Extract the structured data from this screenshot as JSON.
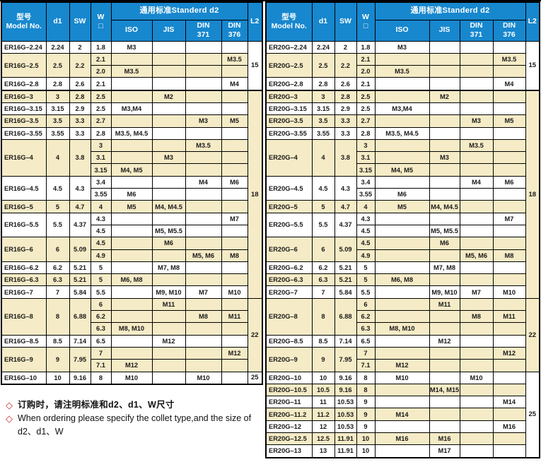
{
  "colors": {
    "header_blue": "#1787ce",
    "row_tan": "#f5ebc6",
    "diamond_red": "#c53030",
    "border_black": "#000000"
  },
  "header": {
    "model_cn": "型号",
    "model_en": "Model No.",
    "d1": "d1",
    "sw": "SW",
    "w": "W",
    "w_box": "□",
    "standard_d2": "通用标准Standerd  d2",
    "iso": "ISO",
    "jis": "JIS",
    "din": "DIN",
    "din371": "371",
    "din376": "376",
    "l2": "L2"
  },
  "tables": [
    {
      "name": "ER16G",
      "l2_spans": [
        {
          "value": "15",
          "rows": 4
        },
        {
          "value": "18",
          "rows": 17
        },
        {
          "value": "22",
          "rows": 6
        },
        {
          "value": "25",
          "rows": 1
        }
      ],
      "groups": [
        {
          "model": "ER16G–2.24",
          "d1": "2.24",
          "sw": "2",
          "rows": [
            [
              "1.8",
              "M3",
              "",
              "",
              ""
            ]
          ]
        },
        {
          "model": "ER16G–2.5",
          "d1": "2.5",
          "sw": "2.2",
          "rows": [
            [
              "2.1",
              "",
              "",
              "",
              "M3.5"
            ],
            [
              "2.0",
              "M3.5",
              "",
              "",
              ""
            ]
          ]
        },
        {
          "model": "ER16G–2.8",
          "d1": "2.8",
          "sw": "2.6",
          "rows": [
            [
              "2.1",
              "",
              "",
              "",
              "M4"
            ]
          ]
        },
        {
          "model": "ER16G–3",
          "d1": "3",
          "sw": "2.8",
          "rows": [
            [
              "2.5",
              "",
              "M2",
              "",
              ""
            ]
          ]
        },
        {
          "model": "ER16G–3.15",
          "d1": "3.15",
          "sw": "2.9",
          "rows": [
            [
              "2.5",
              "M3,M4",
              "",
              "",
              ""
            ]
          ]
        },
        {
          "model": "ER16G–3.5",
          "d1": "3.5",
          "sw": "3.3",
          "rows": [
            [
              "2.7",
              "",
              "",
              "M3",
              "M5"
            ]
          ]
        },
        {
          "model": "ER16G–3.55",
          "d1": "3.55",
          "sw": "3.3",
          "rows": [
            [
              "2.8",
              "M3.5, M4.5",
              "",
              "",
              ""
            ]
          ]
        },
        {
          "model": "ER16G–4",
          "d1": "4",
          "sw": "3.8",
          "rows": [
            [
              "3",
              "",
              "",
              "M3.5",
              ""
            ],
            [
              "3.1",
              "",
              "M3",
              "",
              ""
            ],
            [
              "3.15",
              "M4, M5",
              "",
              "",
              ""
            ]
          ]
        },
        {
          "model": "ER16G–4.5",
          "d1": "4.5",
          "sw": "4.3",
          "rows": [
            [
              "3.4",
              "",
              "",
              "M4",
              "M6"
            ],
            [
              "3.55",
              "M6",
              "",
              "",
              ""
            ]
          ]
        },
        {
          "model": "ER16G–5",
          "d1": "5",
          "sw": "4.7",
          "rows": [
            [
              "4",
              "M5",
              "M4, M4.5",
              "",
              ""
            ]
          ]
        },
        {
          "model": "ER16G–5.5",
          "d1": "5.5",
          "sw": "4.37",
          "rows": [
            [
              "4.3",
              "",
              "",
              "",
              "M7"
            ],
            [
              "4.5",
              "",
              "M5, M5.5",
              "",
              ""
            ]
          ]
        },
        {
          "model": "ER16G–6",
          "d1": "6",
          "sw": "5.09",
          "rows": [
            [
              "4.5",
              "",
              "M6",
              "",
              ""
            ],
            [
              "4.9",
              "",
              "",
              "M5, M6",
              "M8"
            ]
          ]
        },
        {
          "model": "ER16G–6.2",
          "d1": "6.2",
          "sw": "5.21",
          "rows": [
            [
              "5",
              "",
              "M7, M8",
              "",
              ""
            ]
          ]
        },
        {
          "model": "ER16G–6.3",
          "d1": "6.3",
          "sw": "5.21",
          "rows": [
            [
              "5",
              "M6, M8",
              "",
              "",
              ""
            ]
          ]
        },
        {
          "model": "ER16G–7",
          "d1": "7",
          "sw": "5.84",
          "rows": [
            [
              "5.5",
              "",
              "M9, M10",
              "M7",
              "M10"
            ]
          ]
        },
        {
          "model": "ER16G–8",
          "d1": "8",
          "sw": "6.88",
          "rows": [
            [
              "6",
              "",
              "M11",
              "",
              ""
            ],
            [
              "6.2",
              "",
              "",
              "M8",
              "M11"
            ],
            [
              "6.3",
              "M8, M10",
              "",
              "",
              ""
            ]
          ]
        },
        {
          "model": "ER16G–8.5",
          "d1": "8.5",
          "sw": "7.14",
          "rows": [
            [
              "6.5",
              "",
              "M12",
              "",
              ""
            ]
          ]
        },
        {
          "model": "ER16G–9",
          "d1": "9",
          "sw": "7.95",
          "rows": [
            [
              "7",
              "",
              "",
              "",
              "M12"
            ],
            [
              "7.1",
              "M12",
              "",
              "",
              ""
            ]
          ]
        },
        {
          "model": "ER16G–10",
          "d1": "10",
          "sw": "9.16",
          "rows": [
            [
              "8",
              "M10",
              "",
              "M10",
              ""
            ]
          ]
        }
      ]
    },
    {
      "name": "ER20G",
      "l2_spans": [
        {
          "value": "15",
          "rows": 4
        },
        {
          "value": "18",
          "rows": 17
        },
        {
          "value": "22",
          "rows": 6
        },
        {
          "value": "25",
          "rows": 7
        }
      ],
      "groups": [
        {
          "model": "ER20G–2.24",
          "d1": "2.24",
          "sw": "2",
          "rows": [
            [
              "1.8",
              "M3",
              "",
              "",
              ""
            ]
          ]
        },
        {
          "model": "ER20G–2.5",
          "d1": "2.5",
          "sw": "2.2",
          "rows": [
            [
              "2.1",
              "",
              "",
              "",
              "M3.5"
            ],
            [
              "2.0",
              "M3.5",
              "",
              "",
              ""
            ]
          ]
        },
        {
          "model": "ER20G–2.8",
          "d1": "2.8",
          "sw": "2.6",
          "rows": [
            [
              "2.1",
              "",
              "",
              "",
              "M4"
            ]
          ]
        },
        {
          "model": "ER20G–3",
          "d1": "3",
          "sw": "2.8",
          "rows": [
            [
              "2.5",
              "",
              "M2",
              "",
              ""
            ]
          ]
        },
        {
          "model": "ER20G–3.15",
          "d1": "3.15",
          "sw": "2.9",
          "rows": [
            [
              "2.5",
              "M3,M4",
              "",
              "",
              ""
            ]
          ]
        },
        {
          "model": "ER20G–3.5",
          "d1": "3.5",
          "sw": "3.3",
          "rows": [
            [
              "2.7",
              "",
              "",
              "M3",
              "M5"
            ]
          ]
        },
        {
          "model": "ER20G–3.55",
          "d1": "3.55",
          "sw": "3.3",
          "rows": [
            [
              "2.8",
              "M3.5, M4.5",
              "",
              "",
              ""
            ]
          ]
        },
        {
          "model": "ER20G–4",
          "d1": "4",
          "sw": "3.8",
          "rows": [
            [
              "3",
              "",
              "",
              "M3.5",
              ""
            ],
            [
              "3.1",
              "",
              "M3",
              "",
              ""
            ],
            [
              "3.15",
              "M4, M5",
              "",
              "",
              ""
            ]
          ]
        },
        {
          "model": "ER20G–4.5",
          "d1": "4.5",
          "sw": "4.3",
          "rows": [
            [
              "3.4",
              "",
              "",
              "M4",
              "M6"
            ],
            [
              "3.55",
              "M6",
              "",
              "",
              ""
            ]
          ]
        },
        {
          "model": "ER20G–5",
          "d1": "5",
          "sw": "4.7",
          "rows": [
            [
              "4",
              "M5",
              "M4, M4.5",
              "",
              ""
            ]
          ]
        },
        {
          "model": "ER20G–5.5",
          "d1": "5.5",
          "sw": "4.37",
          "rows": [
            [
              "4.3",
              "",
              "",
              "",
              "M7"
            ],
            [
              "4.5",
              "",
              "M5, M5.5",
              "",
              ""
            ]
          ]
        },
        {
          "model": "ER20G–6",
          "d1": "6",
          "sw": "5.09",
          "rows": [
            [
              "4.5",
              "",
              "M6",
              "",
              ""
            ],
            [
              "4.9",
              "",
              "",
              "M5, M6",
              "M8"
            ]
          ]
        },
        {
          "model": "ER20G–6.2",
          "d1": "6.2",
          "sw": "5.21",
          "rows": [
            [
              "5",
              "",
              "M7, M8",
              "",
              ""
            ]
          ]
        },
        {
          "model": "ER20G–6.3",
          "d1": "6.3",
          "sw": "5.21",
          "rows": [
            [
              "5",
              "M6, M8",
              "",
              "",
              ""
            ]
          ]
        },
        {
          "model": "ER20G–7",
          "d1": "7",
          "sw": "5.84",
          "rows": [
            [
              "5.5",
              "",
              "M9, M10",
              "M7",
              "M10"
            ]
          ]
        },
        {
          "model": "ER20G–8",
          "d1": "8",
          "sw": "6.88",
          "rows": [
            [
              "6",
              "",
              "M11",
              "",
              ""
            ],
            [
              "6.2",
              "",
              "",
              "M8",
              "M11"
            ],
            [
              "6.3",
              "M8, M10",
              "",
              "",
              ""
            ]
          ]
        },
        {
          "model": "ER20G–8.5",
          "d1": "8.5",
          "sw": "7.14",
          "rows": [
            [
              "6.5",
              "",
              "M12",
              "",
              ""
            ]
          ]
        },
        {
          "model": "ER20G–9",
          "d1": "9",
          "sw": "7.95",
          "rows": [
            [
              "7",
              "",
              "",
              "",
              "M12"
            ],
            [
              "7.1",
              "M12",
              "",
              "",
              ""
            ]
          ]
        },
        {
          "model": "ER20G–10",
          "d1": "10",
          "sw": "9.16",
          "rows": [
            [
              "8",
              "M10",
              "",
              "M10",
              ""
            ]
          ]
        },
        {
          "model": "ER20G–10.5",
          "d1": "10.5",
          "sw": "9.16",
          "rows": [
            [
              "8",
              "",
              "M14, M15",
              "",
              ""
            ]
          ]
        },
        {
          "model": "ER20G–11",
          "d1": "11",
          "sw": "10.53",
          "rows": [
            [
              "9",
              "",
              "",
              "",
              "M14"
            ]
          ]
        },
        {
          "model": "ER20G–11.2",
          "d1": "11.2",
          "sw": "10.53",
          "rows": [
            [
              "9",
              "M14",
              "",
              "",
              ""
            ]
          ]
        },
        {
          "model": "ER20G–12",
          "d1": "12",
          "sw": "10.53",
          "rows": [
            [
              "9",
              "",
              "",
              "",
              "M16"
            ]
          ]
        },
        {
          "model": "ER20G–12.5",
          "d1": "12.5",
          "sw": "11.91",
          "rows": [
            [
              "10",
              "M16",
              "M16",
              "",
              ""
            ]
          ]
        },
        {
          "model": "ER20G–13",
          "d1": "13",
          "sw": "11.91",
          "rows": [
            [
              "10",
              "",
              "M17",
              "",
              ""
            ]
          ]
        }
      ]
    }
  ],
  "notes": {
    "diamond": "◇",
    "line1_cn": "订购时，请注明标准和d2、d1、W尺寸",
    "line2_en": "When ordering please specify the collet type,and the size of d2、d1、W"
  }
}
